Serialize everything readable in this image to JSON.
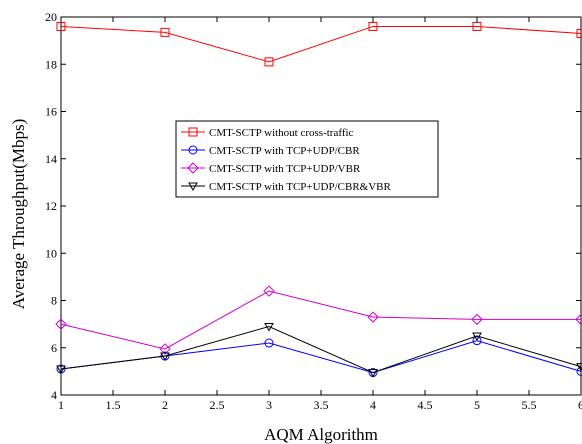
{
  "chart_data": {
    "type": "line",
    "xlabel": "AQM Algorithm",
    "ylabel": "Average Throughput(Mbps)",
    "xlim": [
      1,
      6
    ],
    "ylim": [
      4,
      20
    ],
    "xticks": [
      1,
      1.5,
      2,
      2.5,
      3,
      3.5,
      4,
      4.5,
      5,
      5.5,
      6
    ],
    "xtick_labels": [
      "1",
      "1.5",
      "2",
      "2.5",
      "3",
      "3.5",
      "4",
      "4.5",
      "5",
      "5.5",
      "6"
    ],
    "yticks": [
      4,
      6,
      8,
      10,
      12,
      14,
      16,
      18,
      20
    ],
    "ytick_labels": [
      "4",
      "6",
      "8",
      "10",
      "12",
      "14",
      "16",
      "18",
      "20"
    ],
    "grid": false,
    "legend_position": "center",
    "x": [
      1,
      2,
      3,
      4,
      5,
      6
    ],
    "series": [
      {
        "name": "CMT-SCTP without cross-traffic",
        "color": "#ff0000",
        "marker": "square",
        "values": [
          19.6,
          19.35,
          18.1,
          19.6,
          19.6,
          19.3
        ]
      },
      {
        "name": "CMT-SCTP with TCP+UDP/CBR",
        "color": "#0000ff",
        "marker": "circle",
        "values": [
          5.1,
          5.65,
          6.2,
          4.95,
          6.3,
          5.0
        ]
      },
      {
        "name": "CMT-SCTP with TCP+UDP/VBR",
        "color": "#cc00cc",
        "marker": "diamond",
        "values": [
          7.0,
          5.95,
          8.4,
          7.3,
          7.2,
          7.2
        ]
      },
      {
        "name": "CMT-SCTP with TCP+UDP/CBR&VBR",
        "color": "#000000",
        "marker": "triangle-down",
        "values": [
          5.1,
          5.65,
          6.9,
          4.95,
          6.5,
          5.2
        ]
      }
    ]
  }
}
